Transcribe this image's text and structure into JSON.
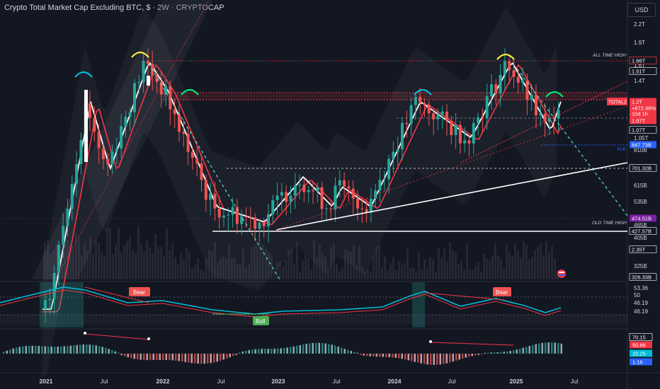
{
  "header": {
    "title": "Crypto Total Market Cap Excluding BTC, $ · 2W · CRYPTOCAP",
    "currency": "USD"
  },
  "colors": {
    "background": "#131722",
    "up": "#26a69a",
    "down": "#ef5350",
    "accent_red": "#f23645",
    "cyan": "#00bcd4",
    "blue_tag": "#2962ff",
    "purple_tag": "#7b1fa2",
    "text": "#d1d4dc"
  },
  "price_axis": {
    "ticks": [
      "2.2T",
      "1.9T",
      "1.6T",
      "1.4T",
      "1.2T",
      "1.05T",
      "810B",
      "615B",
      "535B",
      "465B",
      "405B",
      "325B"
    ],
    "tags": [
      {
        "text": "1.66T",
        "style": "outline-red"
      },
      {
        "text": "1.51T",
        "style": "outline-white"
      },
      {
        "text": "1.2T",
        "style": "red"
      },
      {
        "text": "+672.48%",
        "style": "red"
      },
      {
        "text": "10d 1h",
        "style": "red"
      },
      {
        "text": "1.07T",
        "style": "red"
      },
      {
        "text": "1.07T",
        "style": "outline-white"
      },
      {
        "text": "847.73B",
        "style": "blue"
      },
      {
        "text": "701.32B",
        "style": "outline-white"
      },
      {
        "text": "474.51B",
        "style": "purple"
      },
      {
        "text": "427.57B",
        "style": "outline-white"
      },
      {
        "text": "2.35T",
        "style": "outline-white"
      },
      {
        "text": "326.33B",
        "style": "outline-white"
      }
    ]
  },
  "annotations": {
    "all_time_high": "ALL TIME HIGH",
    "old_time_high": "OLD TIME HIGH",
    "sup": "SUP",
    "total2": "TOTAL2",
    "bear1": "Bear",
    "bear2": "Bear",
    "bull": "Bull"
  },
  "rsi_axis": [
    "53.36",
    "50",
    "46.19",
    "46.19"
  ],
  "macd_axis": [
    "70.15",
    "50.86",
    "10.25",
    "1.16"
  ],
  "time_axis": [
    "2021",
    "Jul",
    "2022",
    "Jul",
    "2023",
    "Jul",
    "2024",
    "Jul",
    "2025",
    "Jul"
  ],
  "chart_data": {
    "type": "line",
    "title": "Crypto Total Market Cap Excluding BTC, $ · 2W · CRYPTOCAP",
    "y_scale": "log",
    "x": [
      "2021-01",
      "2021-05",
      "2021-07",
      "2021-11",
      "2022-01",
      "2022-06",
      "2022-11",
      "2023-03",
      "2023-06",
      "2023-07",
      "2023-10",
      "2024-03",
      "2024-08",
      "2024-12",
      "2025-04",
      "2025-05"
    ],
    "series": [
      {
        "name": "TOTAL2",
        "values": [
          230,
          1200,
          700,
          1650,
          1300,
          520,
          460,
          660,
          520,
          610,
          520,
          1200,
          900,
          1650,
          950,
          1200
        ]
      }
    ],
    "levels": [
      {
        "label": "ALL TIME HIGH",
        "value": 1660
      },
      {
        "label": "SUP",
        "value": 847.73
      },
      {
        "label": "OLD TIME HIGH",
        "value": 474.51
      }
    ]
  }
}
